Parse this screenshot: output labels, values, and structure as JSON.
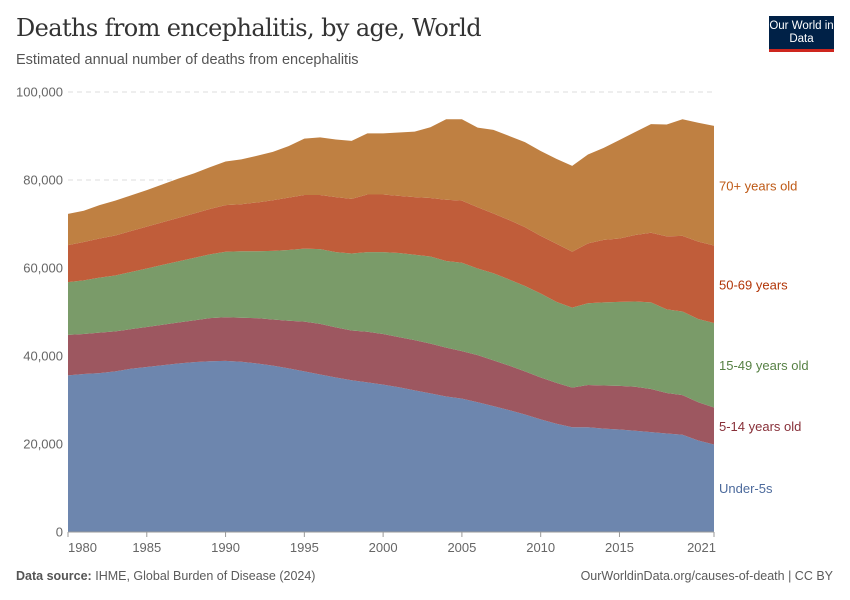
{
  "header": {
    "title": "Deaths from encephalitis, by age, World",
    "subtitle": "Estimated annual number of deaths from encephalitis",
    "logo_text": "Our World in Data"
  },
  "footer": {
    "source_label": "Data source:",
    "source": "IHME, Global Burden of Disease (2024)",
    "url_license": "OurWorldinData.org/causes-of-death | CC BY"
  },
  "chart_data": {
    "type": "area",
    "stacked": true,
    "title": "Deaths from encephalitis, by age, World",
    "subtitle": "Estimated annual number of deaths from encephalitis",
    "xlabel": "",
    "ylabel": "",
    "xlim": [
      1980,
      2021
    ],
    "ylim": [
      0,
      100000
    ],
    "grid": "horizontal dashed",
    "legend": "right (inline labels)",
    "x_ticks": [
      "1980",
      "1985",
      "1990",
      "1995",
      "2000",
      "2005",
      "2010",
      "2015",
      "2021"
    ],
    "y_ticks": [
      "0",
      "20,000",
      "40,000",
      "60,000",
      "80,000",
      "100,000"
    ],
    "x": [
      1980,
      1981,
      1982,
      1983,
      1984,
      1985,
      1986,
      1987,
      1988,
      1989,
      1990,
      1991,
      1992,
      1993,
      1994,
      1995,
      1996,
      1997,
      1998,
      1999,
      2000,
      2001,
      2002,
      2003,
      2004,
      2005,
      2006,
      2007,
      2008,
      2009,
      2010,
      2011,
      2012,
      2013,
      2014,
      2015,
      2016,
      2017,
      2018,
      2019,
      2020,
      2021
    ],
    "series": [
      {
        "name": "Under-5s",
        "color": "#6d86ae",
        "label_color": "#4c6a9c",
        "values": [
          35600,
          35900,
          36100,
          36500,
          37100,
          37500,
          37900,
          38300,
          38600,
          38800,
          38900,
          38700,
          38300,
          37800,
          37200,
          36500,
          35800,
          35100,
          34500,
          34000,
          33500,
          32900,
          32200,
          31500,
          30800,
          30300,
          29500,
          28600,
          27700,
          26700,
          25600,
          24600,
          23800,
          23800,
          23500,
          23300,
          23000,
          22700,
          22400,
          22100,
          20800,
          19900
        ]
      },
      {
        "name": "5-14 years old",
        "color": "#9d5760",
        "label_color": "#883039",
        "values": [
          9200,
          9100,
          9200,
          9100,
          9000,
          9100,
          9200,
          9300,
          9500,
          9800,
          9900,
          10000,
          10300,
          10500,
          10800,
          11300,
          11500,
          11400,
          11300,
          11500,
          11500,
          11400,
          11400,
          11300,
          11100,
          10800,
          10700,
          10400,
          10100,
          9800,
          9500,
          9300,
          9000,
          9600,
          9800,
          9900,
          10000,
          9800,
          9200,
          9000,
          8700,
          8400
        ]
      },
      {
        "name": "15-49 years old",
        "color": "#7a9b69",
        "label_color": "#578145",
        "values": [
          12000,
          12200,
          12500,
          12700,
          13000,
          13300,
          13600,
          13900,
          14200,
          14500,
          14900,
          15100,
          15200,
          15600,
          16100,
          16600,
          17000,
          17100,
          17500,
          18100,
          18600,
          19100,
          19400,
          19800,
          19700,
          20100,
          19700,
          19800,
          19600,
          19400,
          19100,
          18400,
          18200,
          18600,
          18900,
          19100,
          19400,
          19700,
          19000,
          19000,
          18900,
          19200
        ]
      },
      {
        "name": "50-69 years",
        "color": "#c05d3a",
        "label_color": "#b13507",
        "values": [
          8400,
          8700,
          8900,
          9100,
          9300,
          9500,
          9700,
          9900,
          10100,
          10300,
          10600,
          10700,
          11100,
          11500,
          11900,
          12200,
          12300,
          12500,
          12400,
          13100,
          13100,
          13000,
          13100,
          13300,
          13900,
          14100,
          13900,
          13600,
          13500,
          13400,
          13100,
          13200,
          12700,
          13600,
          14200,
          14400,
          15100,
          15800,
          16600,
          17200,
          17600,
          17600
        ]
      },
      {
        "name": "70+ years old",
        "color": "#bf8042",
        "label_color": "#be5915",
        "values": [
          7100,
          7100,
          7600,
          7900,
          8100,
          8300,
          8600,
          8900,
          9100,
          9500,
          9900,
          10200,
          10600,
          11000,
          11700,
          12800,
          13100,
          13100,
          13200,
          13900,
          13900,
          14400,
          14900,
          16100,
          18300,
          18500,
          18100,
          19000,
          19100,
          19300,
          19300,
          19300,
          19500,
          20200,
          20900,
          22400,
          23400,
          24700,
          25400,
          26500,
          27000,
          27200
        ]
      }
    ]
  }
}
